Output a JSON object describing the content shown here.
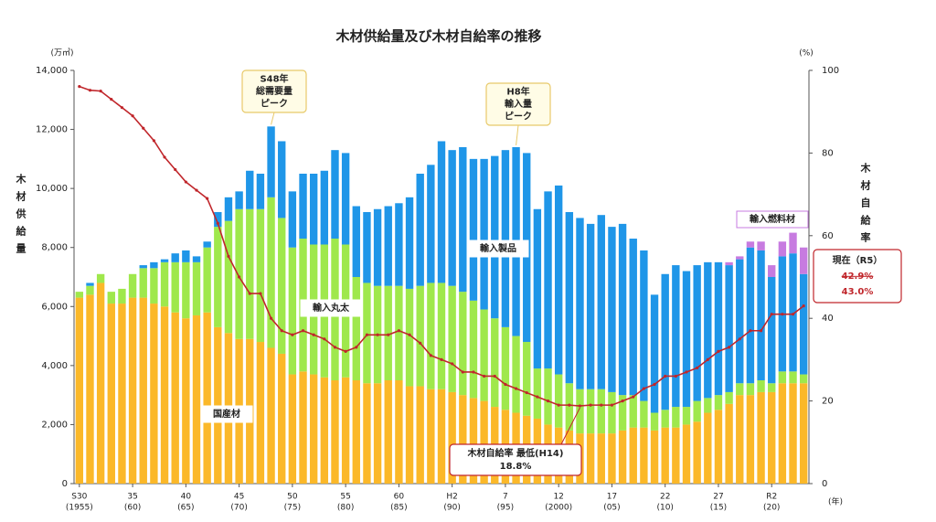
{
  "chart_data": {
    "type": "bar",
    "title": "木材供給量及び木材自給率の推移",
    "y_unit": "(万㎥)",
    "y2_unit": "(%)",
    "x_unit": "(年)",
    "y_label": "木材供給量",
    "categories": [
      [
        "S30",
        "(1955)"
      ],
      null,
      null,
      null,
      null,
      [
        "35",
        "(60)"
      ],
      null,
      null,
      null,
      null,
      [
        "40",
        "(65)"
      ],
      null,
      null,
      null,
      null,
      [
        "45",
        "(70)"
      ],
      null,
      null,
      null,
      null,
      [
        "50",
        "(75)"
      ],
      null,
      null,
      null,
      null,
      [
        "55",
        "(80)"
      ],
      null,
      null,
      null,
      null,
      [
        "60",
        "(85)"
      ],
      null,
      null,
      null,
      null,
      [
        "H2",
        "(90)"
      ],
      null,
      null,
      null,
      null,
      [
        "7",
        "(95)"
      ],
      null,
      null,
      null,
      null,
      [
        "12",
        "(2000)"
      ],
      null,
      null,
      null,
      null,
      [
        "17",
        "(05)"
      ],
      null,
      null,
      null,
      null,
      [
        "22",
        "(10)"
      ],
      null,
      null,
      null,
      null,
      [
        "27",
        "(15)"
      ],
      null,
      null,
      null,
      null,
      [
        "R2",
        "(20)"
      ],
      null,
      null,
      null
    ],
    "stacked": true,
    "series": [
      {
        "name": "国産材",
        "color": "#fbb829",
        "values": [
          6300,
          6400,
          6800,
          6100,
          6100,
          6300,
          6300,
          6100,
          6000,
          5800,
          5600,
          5700,
          5800,
          5300,
          5100,
          4900,
          4900,
          4800,
          4600,
          4400,
          3700,
          3800,
          3700,
          3600,
          3500,
          3600,
          3500,
          3400,
          3400,
          3500,
          3500,
          3300,
          3300,
          3200,
          3200,
          3100,
          3000,
          2900,
          2800,
          2600,
          2500,
          2400,
          2300,
          2200,
          2000,
          1900,
          1800,
          1700,
          1700,
          1700,
          1700,
          1800,
          1900,
          1900,
          1800,
          1900,
          1900,
          2000,
          2100,
          2400,
          2500,
          2700,
          3000,
          3000,
          3100,
          3100,
          3400,
          3400,
          3400
        ]
      },
      {
        "name": "輸入丸太",
        "color": "#9fe84c",
        "values": [
          200,
          300,
          300,
          400,
          500,
          800,
          1000,
          1200,
          1500,
          1700,
          1900,
          1800,
          2200,
          3400,
          3800,
          4400,
          4400,
          4500,
          5100,
          4600,
          4300,
          4500,
          4400,
          4500,
          4800,
          4500,
          3500,
          3400,
          3300,
          3200,
          3200,
          3300,
          3400,
          3600,
          3600,
          3600,
          3500,
          3300,
          3100,
          3000,
          2800,
          2600,
          2500,
          1700,
          1900,
          1800,
          1600,
          1500,
          1500,
          1500,
          1400,
          1200,
          1100,
          900,
          600,
          600,
          700,
          600,
          700,
          500,
          500,
          400,
          400,
          400,
          400,
          300,
          400,
          400,
          300
        ]
      },
      {
        "name": "輸入製品",
        "color": "#1f96e8",
        "values": [
          0,
          100,
          0,
          0,
          0,
          0,
          100,
          200,
          100,
          300,
          400,
          200,
          200,
          500,
          800,
          600,
          1300,
          1200,
          2400,
          2600,
          1900,
          2200,
          2400,
          2500,
          3000,
          3100,
          2400,
          2400,
          2600,
          2700,
          2800,
          3100,
          3800,
          4000,
          4800,
          4600,
          4900,
          4800,
          5100,
          5500,
          6000,
          6400,
          6400,
          5400,
          6000,
          6400,
          5800,
          5800,
          5600,
          5900,
          5600,
          5800,
          5300,
          5100,
          4000,
          4600,
          4800,
          4600,
          4600,
          4600,
          4500,
          4300,
          4200,
          4600,
          4400,
          3600,
          3900,
          4000,
          3400
        ]
      },
      {
        "name": "輸入燃料材",
        "color": "#c77be0",
        "values": [
          null,
          null,
          null,
          null,
          null,
          null,
          null,
          null,
          null,
          null,
          null,
          null,
          null,
          null,
          null,
          null,
          null,
          null,
          null,
          null,
          null,
          null,
          null,
          null,
          null,
          null,
          null,
          null,
          null,
          null,
          null,
          null,
          null,
          null,
          null,
          null,
          null,
          null,
          null,
          null,
          null,
          null,
          null,
          null,
          null,
          null,
          null,
          null,
          null,
          null,
          null,
          null,
          null,
          null,
          null,
          null,
          null,
          null,
          null,
          null,
          null,
          100,
          100,
          200,
          300,
          400,
          500,
          700,
          900
        ]
      },
      {
        "name": "木材自給率",
        "type": "line",
        "axis": "y2",
        "color": "#c0262b",
        "values": [
          96.1,
          95.2,
          95,
          93,
          91,
          89,
          86,
          83,
          79,
          76,
          73,
          71,
          69,
          63,
          55,
          50,
          46,
          46,
          40,
          37,
          36,
          37,
          36,
          35,
          33,
          32,
          33,
          36,
          36,
          36,
          37,
          36,
          34,
          31,
          30,
          29,
          27,
          27,
          26,
          26,
          24,
          23,
          22,
          21,
          20,
          19,
          19,
          18.8,
          19,
          19,
          19,
          20,
          21,
          23,
          24,
          26,
          26,
          27,
          28,
          30,
          32,
          33,
          35,
          37,
          37,
          41,
          41,
          41,
          43
        ]
      }
    ],
    "ylim": [
      0,
      14000
    ],
    "yticks": [
      0,
      {
        "value": 2000,
        "label": "2,000"
      },
      {
        "value": 4000,
        "label": "4,000"
      },
      {
        "value": 6000,
        "label": "6,000"
      },
      {
        "value": 8000,
        "label": "8,000"
      },
      {
        "value": 10000,
        "label": "10,000"
      },
      {
        "value": 12000,
        "label": "12,000"
      },
      {
        "value": 14000,
        "label": "14,000"
      }
    ],
    "y2lim": [
      0,
      100
    ],
    "y2ticks": [
      0,
      20,
      40,
      60,
      80,
      100
    ],
    "annotations": [
      {
        "lines": [
          "S48年",
          "総需要量",
          "ピーク"
        ]
      },
      {
        "lines": [
          "H8年",
          "輸入量",
          "ピーク"
        ]
      },
      {
        "lines": [
          "現在（R5）",
          "42.9%",
          "43.0%"
        ]
      },
      {
        "lines": [
          "木材自給率 最低(H14)",
          "18.8%"
        ]
      }
    ]
  }
}
